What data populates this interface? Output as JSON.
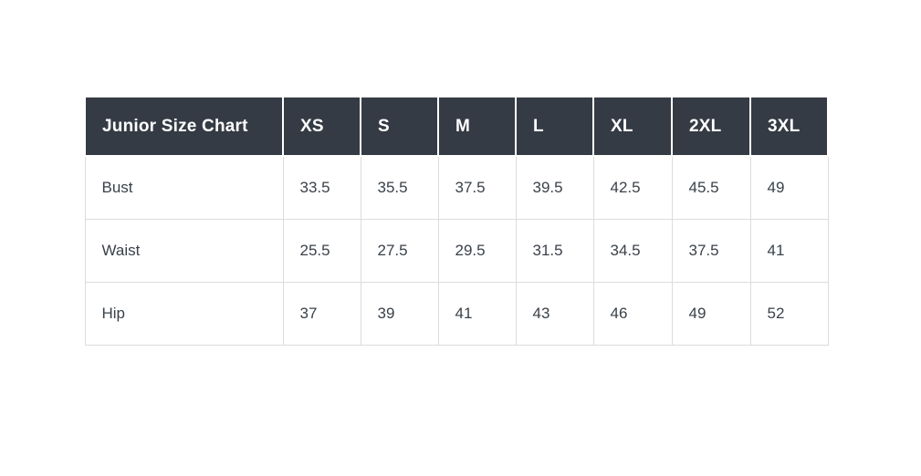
{
  "page": {
    "background_color": "#ffffff"
  },
  "size_chart": {
    "title": "Junior Size Chart",
    "column_headers": [
      "XS",
      "S",
      "M",
      "L",
      "XL",
      "2XL",
      "3XL"
    ],
    "rows": [
      {
        "label": "Bust",
        "values": [
          "33.5",
          "35.5",
          "37.5",
          "39.5",
          "42.5",
          "45.5",
          "49"
        ]
      },
      {
        "label": "Waist",
        "values": [
          "25.5",
          "27.5",
          "29.5",
          "31.5",
          "34.5",
          "37.5",
          "41"
        ]
      },
      {
        "label": "Hip",
        "values": [
          "37",
          "39",
          "41",
          "43",
          "46",
          "49",
          "52"
        ]
      }
    ],
    "colors": {
      "header_background": "#353b44",
      "header_text": "#ffffff",
      "body_text": "#3a4149",
      "grid_border": "#dcdcdc",
      "header_separator": "#ffffff"
    }
  },
  "chart_data": {
    "type": "table",
    "title": "Junior Size Chart",
    "columns": [
      "Junior Size Chart",
      "XS",
      "S",
      "M",
      "L",
      "XL",
      "2XL",
      "3XL"
    ],
    "rows": [
      [
        "Bust",
        33.5,
        35.5,
        37.5,
        39.5,
        42.5,
        45.5,
        49
      ],
      [
        "Waist",
        25.5,
        27.5,
        29.5,
        31.5,
        34.5,
        37.5,
        41
      ],
      [
        "Hip",
        37,
        39,
        41,
        43,
        46,
        49,
        52
      ]
    ],
    "layout": {
      "grid": true,
      "header_row": true,
      "first_column_is_row_label": true
    }
  }
}
